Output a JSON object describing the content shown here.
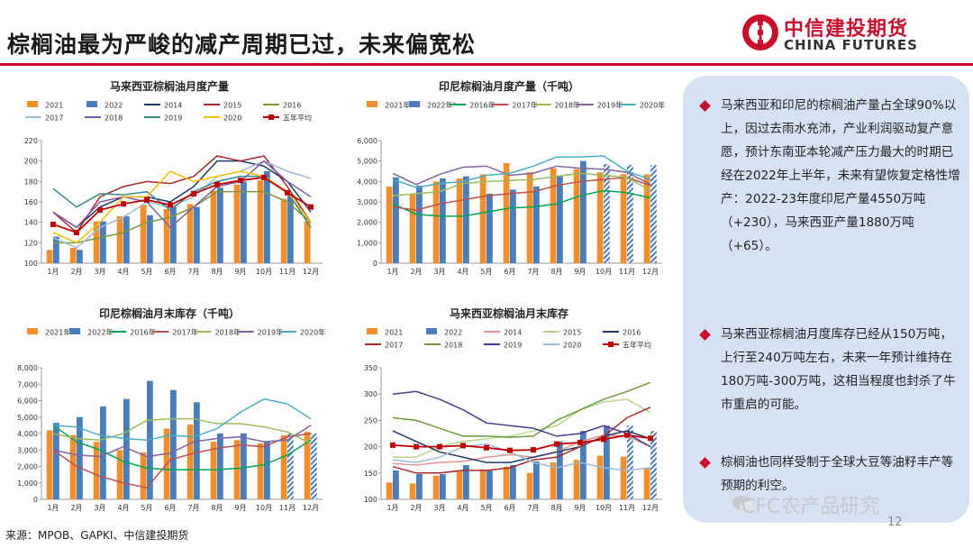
{
  "header": {
    "title": "棕榈油最为严峻的减产周期已过，未来偏宽松",
    "logo_cn": "中信建投期货",
    "logo_en": "CHINA FUTURES",
    "brand_color": "#c8102e"
  },
  "sidebar": {
    "bullets": [
      "马来西亚和印尼的棕榈油产量占全球90%以上，因过去雨水充沛，产业利润驱动复产意愿，预计东南亚本轮减产压力最大的时期已经在2022年上半年，未来有望恢复定格性增产：2022-23年度印尼产量4550万吨（+230），马来西亚产量1880万吨（+65）。",
      "马来西亚棕榈油月度库存已经从150万吨，上行至240万吨左右，未来一年预计维持在180万吨-300万吨，这相当程度也封杀了牛市重启的可能。",
      "棕榈油也同样受制于全球大豆等油籽丰产等预期的利空。"
    ]
  },
  "footer": {
    "source": "来源：MPOB、GAPKI、中信建投期货",
    "page": "12",
    "watermark": "CFC农产品研究"
  },
  "chart_data": [
    {
      "type": "bar",
      "title": "马来西亚棕榈油月度产量",
      "categories": [
        "1月",
        "2月",
        "3月",
        "4月",
        "5月",
        "6月",
        "7月",
        "8月",
        "9月",
        "10月",
        "11月",
        "12月"
      ],
      "ylim": [
        100,
        220
      ],
      "yticks": [
        100,
        120,
        140,
        160,
        180,
        200,
        220
      ],
      "legend": "top",
      "series": [
        {
          "name": "2021",
          "kind": "bar",
          "color": "#f28e2b",
          "values": [
            113,
            115,
            141,
            146,
            157,
            153,
            158,
            171,
            177,
            181,
            163,
            141
          ]
        },
        {
          "name": "2022",
          "kind": "bar",
          "color": "#4a7ebb",
          "values": [
            126,
            113,
            141,
            146,
            147,
            155,
            155,
            174,
            180,
            190,
            166,
            null
          ]
        },
        {
          "name": "2014",
          "kind": "line",
          "color": "#1f3a68",
          "values": [
            150,
            135,
            155,
            165,
            165,
            160,
            175,
            200,
            200,
            195,
            180,
            150
          ]
        },
        {
          "name": "2015",
          "kind": "line",
          "color": "#a52a2a",
          "values": [
            150,
            130,
            165,
            175,
            180,
            178,
            185,
            205,
            200,
            205,
            175,
            140
          ]
        },
        {
          "name": "2016",
          "kind": "line",
          "color": "#7a9a3a",
          "values": [
            120,
            120,
            125,
            130,
            140,
            145,
            155,
            170,
            170,
            170,
            160,
            140
          ]
        },
        {
          "name": "2017",
          "kind": "line",
          "color": "#9bbbd9",
          "values": [
            125,
            115,
            135,
            145,
            160,
            155,
            165,
            185,
            190,
            200,
            190,
            183
          ]
        },
        {
          "name": "2018",
          "kind": "line",
          "color": "#7b5ea7",
          "values": [
            150,
            135,
            160,
            165,
            160,
            135,
            155,
            175,
            180,
            200,
            180,
            165
          ]
        },
        {
          "name": "2019",
          "kind": "line",
          "color": "#3a8a8a",
          "values": [
            173,
            155,
            168,
            167,
            170,
            152,
            170,
            180,
            185,
            185,
            170,
            135
          ]
        },
        {
          "name": "2020",
          "kind": "line",
          "color": "#f2c200",
          "values": [
            130,
            120,
            140,
            165,
            165,
            190,
            180,
            185,
            190,
            185,
            170,
            140
          ]
        },
        {
          "name": "五年平均",
          "kind": "line-marker",
          "color": "#c00000",
          "values": [
            138,
            130,
            152,
            158,
            162,
            157,
            168,
            177,
            181,
            184,
            169,
            155
          ]
        }
      ]
    },
    {
      "type": "bar",
      "title": "印尼棕榈油月度产量（千吨）",
      "categories": [
        "1月",
        "2月",
        "3月",
        "4月",
        "5月",
        "6月",
        "7月",
        "8月",
        "9月",
        "10月",
        "11月",
        "12月"
      ],
      "ylim": [
        0,
        6000
      ],
      "yticks": [
        0,
        1000,
        2000,
        3000,
        4000,
        5000,
        6000
      ],
      "legend": "top",
      "series": [
        {
          "name": "2021年",
          "kind": "bar",
          "color": "#f28e2b",
          "values": [
            3750,
            3400,
            4000,
            4150,
            4350,
            4900,
            4450,
            4650,
            4600,
            4450,
            4350,
            4350
          ]
        },
        {
          "name": "2022年*",
          "kind": "bar",
          "color": "#4a7ebb",
          "values": [
            4200,
            3800,
            4150,
            4250,
            3400,
            3600,
            3750,
            4300,
            5000,
            4850,
            4800,
            4800
          ],
          "hatched_from": 9
        },
        {
          "name": "2016年",
          "kind": "line",
          "color": "#00a650",
          "values": [
            2900,
            2400,
            2300,
            2300,
            2500,
            2700,
            2750,
            2900,
            3300,
            3550,
            3450,
            3200
          ]
        },
        {
          "name": "2017年",
          "kind": "line",
          "color": "#c0504d",
          "values": [
            2750,
            2600,
            2900,
            3100,
            3300,
            3400,
            3500,
            3800,
            4000,
            4100,
            4200,
            3800
          ]
        },
        {
          "name": "2018年",
          "kind": "line",
          "color": "#9bbb59",
          "values": [
            3300,
            3400,
            3500,
            3900,
            4000,
            4050,
            4100,
            4250,
            4400,
            4300,
            4200,
            3550
          ]
        },
        {
          "name": "2019年",
          "kind": "line",
          "color": "#8064a2",
          "values": [
            4400,
            3850,
            4350,
            4700,
            4750,
            4300,
            4400,
            4750,
            4650,
            4600,
            4450,
            3850
          ]
        },
        {
          "name": "2020年",
          "kind": "line",
          "color": "#4bacc6",
          "values": [
            4100,
            3700,
            3900,
            4000,
            4300,
            4400,
            4750,
            5200,
            5200,
            5250,
            4500,
            4100
          ]
        }
      ]
    },
    {
      "type": "bar",
      "title": "印尼棕榈油月末库存（千吨）",
      "categories": [
        "1月",
        "2月",
        "3月",
        "4月",
        "5月",
        "6月",
        "7月",
        "8月",
        "9月",
        "10月",
        "11月",
        "12月"
      ],
      "ylim": [
        0,
        8000
      ],
      "yticks": [
        0,
        1000,
        2000,
        3000,
        4000,
        5000,
        6000,
        7000,
        8000
      ],
      "legend": "top",
      "series": [
        {
          "name": "2021年",
          "kind": "bar",
          "color": "#f28e2b",
          "values": [
            4200,
            3900,
            3500,
            3000,
            2850,
            4300,
            4550,
            3500,
            3600,
            3400,
            3900,
            4100
          ]
        },
        {
          "name": "2022年",
          "kind": "bar",
          "color": "#4a7ebb",
          "values": [
            4650,
            5000,
            5650,
            6100,
            7200,
            6650,
            5900,
            4000,
            4000,
            3500,
            4000,
            4000
          ],
          "hatched_from": 10
        },
        {
          "name": "2016年",
          "kind": "line",
          "color": "#00a650",
          "values": [
            4500,
            3500,
            3000,
            2300,
            1900,
            1800,
            1800,
            1800,
            1900,
            2100,
            2700,
            3600
          ]
        },
        {
          "name": "2017年",
          "kind": "line",
          "color": "#c0504d",
          "values": [
            3000,
            2000,
            1400,
            1000,
            700,
            2400,
            2800,
            3100,
            3300,
            3200,
            3800,
            4000
          ]
        },
        {
          "name": "2018年",
          "kind": "line",
          "color": "#9bbb59",
          "values": [
            4000,
            3700,
            3600,
            4000,
            4800,
            4900,
            4900,
            4600,
            4600,
            4400,
            4100,
            3400
          ]
        },
        {
          "name": "2019年",
          "kind": "line",
          "color": "#8064a2",
          "values": [
            3000,
            2700,
            2600,
            3200,
            2600,
            2800,
            3500,
            3700,
            3800,
            3500,
            3600,
            4500
          ]
        },
        {
          "name": "2020年",
          "kind": "line",
          "color": "#4bacc6",
          "values": [
            4500,
            4400,
            3900,
            3700,
            3600,
            3900,
            3800,
            4300,
            5300,
            6100,
            5800,
            4900
          ]
        }
      ]
    },
    {
      "type": "bar",
      "title": "马来西亚棕榈油月末库存",
      "categories": [
        "1月",
        "2月",
        "3月",
        "4月",
        "5月",
        "6月",
        "7月",
        "8月",
        "9月",
        "10月",
        "11月",
        "12月"
      ],
      "ylim": [
        100,
        350
      ],
      "yticks": [
        100,
        150,
        200,
        250,
        300,
        350
      ],
      "legend": "top",
      "series": [
        {
          "name": "2021",
          "kind": "bar",
          "color": "#f28e2b",
          "values": [
            132,
            130,
            145,
            155,
            157,
            162,
            150,
            170,
            175,
            183,
            181,
            160
          ]
        },
        {
          "name": "2022",
          "kind": "bar",
          "color": "#4a7ebb",
          "values": [
            155,
            148,
            148,
            165,
            155,
            165,
            172,
            210,
            230,
            240,
            240,
            230
          ],
          "hatched_from": 10
        },
        {
          "name": "2014",
          "kind": "line",
          "color": "#e0958f",
          "values": [
            168,
            165,
            170,
            172,
            180,
            185,
            180,
            190,
            210,
            222,
            220,
            200
          ]
        },
        {
          "name": "2015",
          "kind": "line",
          "color": "#b8d48c",
          "values": [
            180,
            180,
            200,
            210,
            215,
            220,
            230,
            240,
            270,
            285,
            290,
            265
          ]
        },
        {
          "name": "2016",
          "kind": "line",
          "color": "#1f3a68",
          "values": [
            230,
            210,
            190,
            180,
            170,
            170,
            180,
            190,
            200,
            220,
            230,
            215
          ]
        },
        {
          "name": "2017",
          "kind": "line",
          "color": "#a52a2a",
          "values": [
            162,
            150,
            150,
            155,
            155,
            160,
            175,
            180,
            200,
            220,
            255,
            275
          ]
        },
        {
          "name": "2018",
          "kind": "line",
          "color": "#6a9a3a",
          "values": [
            255,
            250,
            235,
            220,
            220,
            218,
            220,
            250,
            270,
            290,
            305,
            322
          ]
        },
        {
          "name": "2019",
          "kind": "line",
          "color": "#4b3a8a",
          "values": [
            300,
            305,
            290,
            270,
            245,
            240,
            235,
            220,
            225,
            240,
            225,
            200
          ]
        },
        {
          "name": "2020",
          "kind": "line",
          "color": "#9bbbd9",
          "values": [
            175,
            170,
            180,
            200,
            205,
            190,
            170,
            160,
            170,
            160,
            155,
            160
          ]
        },
        {
          "name": "五年平均",
          "kind": "line-marker",
          "color": "#c00000",
          "values": [
            203,
            200,
            200,
            202,
            198,
            193,
            194,
            205,
            208,
            214,
            222,
            216
          ]
        }
      ]
    }
  ]
}
